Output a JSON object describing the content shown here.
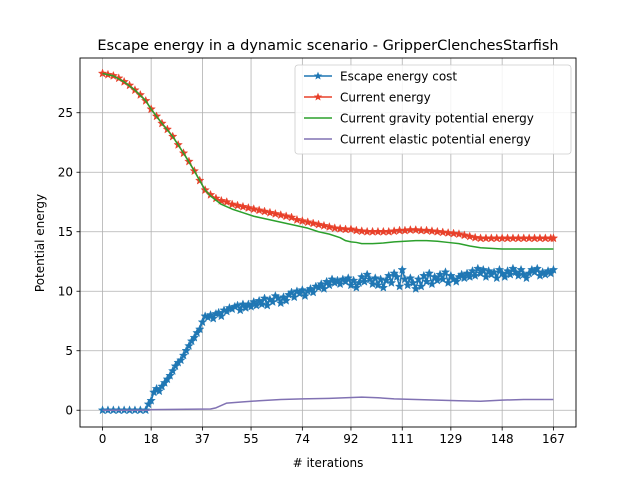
{
  "chart_data": {
    "type": "line",
    "title": "Escape energy in a dynamic scenario - GripperClenchesStarfish",
    "xlabel": "# iterations",
    "ylabel": "Potential energy",
    "xlim": [
      -8.35,
      175.35
    ],
    "ylim": [
      -1.41,
      29.6
    ],
    "xticks": [
      0,
      18,
      37,
      55,
      74,
      92,
      111,
      129,
      148,
      167
    ],
    "yticks": [
      0,
      5,
      10,
      15,
      20,
      25
    ],
    "grid": true,
    "legend_position": "top-right",
    "series": [
      {
        "name": "Escape energy cost",
        "color": "#1f77b4",
        "marker": "star",
        "points": [
          [
            0,
            0
          ],
          [
            2,
            0
          ],
          [
            4,
            0
          ],
          [
            6,
            0
          ],
          [
            8,
            0
          ],
          [
            10,
            0
          ],
          [
            12,
            0
          ],
          [
            14,
            0
          ],
          [
            16,
            0
          ],
          [
            17,
            0.5
          ],
          [
            18,
            0.8
          ],
          [
            19,
            1.5
          ],
          [
            20,
            1.8
          ],
          [
            21,
            1.6
          ],
          [
            22,
            2.0
          ],
          [
            23,
            2.3
          ],
          [
            24,
            2.6
          ],
          [
            25,
            2.9
          ],
          [
            26,
            3.3
          ],
          [
            27,
            3.7
          ],
          [
            28,
            4.0
          ],
          [
            29,
            4.2
          ],
          [
            30,
            4.6
          ],
          [
            31,
            5.0
          ],
          [
            32,
            5.4
          ],
          [
            33,
            5.8
          ],
          [
            34,
            6.1
          ],
          [
            35,
            6.5
          ],
          [
            36,
            6.8
          ],
          [
            37,
            7.4
          ],
          [
            38,
            7.9
          ],
          [
            39,
            7.8
          ],
          [
            40,
            8.0
          ],
          [
            41,
            7.7
          ],
          [
            42,
            8.1
          ],
          [
            43,
            8.2
          ],
          [
            44,
            7.9
          ],
          [
            45,
            8.4
          ],
          [
            46,
            8.3
          ],
          [
            47,
            8.6
          ],
          [
            48,
            8.5
          ],
          [
            49,
            8.7
          ],
          [
            50,
            8.8
          ],
          [
            51,
            8.4
          ],
          [
            52,
            8.9
          ],
          [
            53,
            8.6
          ],
          [
            54,
            8.9
          ],
          [
            55,
            8.7
          ],
          [
            56,
            9.1
          ],
          [
            57,
            8.8
          ],
          [
            58,
            9.2
          ],
          [
            59,
            8.9
          ],
          [
            60,
            9.4
          ],
          [
            61,
            8.8
          ],
          [
            62,
            9.3
          ],
          [
            63,
            9.1
          ],
          [
            64,
            9.6
          ],
          [
            65,
            9.4
          ],
          [
            66,
            9.0
          ],
          [
            67,
            9.5
          ],
          [
            68,
            9.2
          ],
          [
            69,
            9.7
          ],
          [
            70,
            9.9
          ],
          [
            71,
            9.5
          ],
          [
            72,
            10.0
          ],
          [
            73,
            9.8
          ],
          [
            74,
            10.1
          ],
          [
            75,
            9.6
          ],
          [
            76,
            10.0
          ],
          [
            77,
            10.2
          ],
          [
            78,
            9.9
          ],
          [
            79,
            10.4
          ],
          [
            80,
            10.3
          ],
          [
            81,
            10.6
          ],
          [
            82,
            10.2
          ],
          [
            83,
            10.8
          ],
          [
            84,
            10.5
          ],
          [
            85,
            11.0
          ],
          [
            86,
            10.7
          ],
          [
            87,
            10.9
          ],
          [
            88,
            10.6
          ],
          [
            89,
            11.0
          ],
          [
            90,
            10.8
          ],
          [
            91,
            11.1
          ],
          [
            92,
            10.5
          ],
          [
            93,
            10.9
          ],
          [
            94,
            10.3
          ],
          [
            95,
            10.7
          ],
          [
            96,
            11.2
          ],
          [
            97,
            10.8
          ],
          [
            98,
            11.4
          ],
          [
            99,
            11.0
          ],
          [
            100,
            10.6
          ],
          [
            101,
            11.1
          ],
          [
            102,
            10.5
          ],
          [
            103,
            11.0
          ],
          [
            104,
            10.3
          ],
          [
            105,
            10.9
          ],
          [
            106,
            11.3
          ],
          [
            107,
            10.7
          ],
          [
            108,
            11.5
          ],
          [
            109,
            11.2
          ],
          [
            110,
            10.4
          ],
          [
            111,
            11.8
          ],
          [
            112,
            11.0
          ],
          [
            113,
            10.5
          ],
          [
            114,
            11.1
          ],
          [
            115,
            10.7
          ],
          [
            116,
            10.2
          ],
          [
            117,
            11.0
          ],
          [
            118,
            10.4
          ],
          [
            119,
            11.3
          ],
          [
            120,
            10.8
          ],
          [
            121,
            11.5
          ],
          [
            122,
            10.6
          ],
          [
            123,
            11.2
          ],
          [
            124,
            10.9
          ],
          [
            125,
            11.4
          ],
          [
            126,
            11.0
          ],
          [
            127,
            11.6
          ],
          [
            128,
            10.7
          ],
          [
            129,
            11.3
          ],
          [
            130,
            11.0
          ],
          [
            131,
            10.8
          ],
          [
            132,
            11.2
          ],
          [
            133,
            11.4
          ],
          [
            134,
            11.1
          ],
          [
            135,
            11.5
          ],
          [
            136,
            11.2
          ],
          [
            137,
            11.7
          ],
          [
            138,
            11.3
          ],
          [
            139,
            11.9
          ],
          [
            140,
            11.5
          ],
          [
            141,
            11.8
          ],
          [
            142,
            11.2
          ],
          [
            143,
            11.7
          ],
          [
            144,
            11.4
          ],
          [
            145,
            11.6
          ],
          [
            146,
            11.1
          ],
          [
            147,
            11.8
          ],
          [
            148,
            11.5
          ],
          [
            149,
            11.2
          ],
          [
            150,
            11.7
          ],
          [
            151,
            11.4
          ],
          [
            152,
            11.9
          ],
          [
            153,
            11.6
          ],
          [
            154,
            11.3
          ],
          [
            155,
            11.8
          ],
          [
            156,
            11.4
          ],
          [
            157,
            11.1
          ],
          [
            158,
            11.5
          ],
          [
            159,
            11.8
          ],
          [
            160,
            11.6
          ],
          [
            161,
            11.9
          ],
          [
            162,
            11.3
          ],
          [
            163,
            11.6
          ],
          [
            164,
            11.4
          ],
          [
            165,
            11.7
          ],
          [
            166,
            11.5
          ],
          [
            167,
            11.8
          ]
        ]
      },
      {
        "name": "Current energy",
        "color": "#e8402a",
        "marker": "star",
        "points": [
          [
            0,
            28.3
          ],
          [
            2,
            28.2
          ],
          [
            4,
            28.1
          ],
          [
            6,
            27.9
          ],
          [
            8,
            27.6
          ],
          [
            10,
            27.3
          ],
          [
            12,
            26.9
          ],
          [
            14,
            26.5
          ],
          [
            16,
            26.0
          ],
          [
            18,
            25.3
          ],
          [
            20,
            24.7
          ],
          [
            22,
            24.1
          ],
          [
            24,
            23.6
          ],
          [
            26,
            23.0
          ],
          [
            28,
            22.3
          ],
          [
            30,
            21.6
          ],
          [
            32,
            20.9
          ],
          [
            34,
            20.1
          ],
          [
            36,
            19.3
          ],
          [
            38,
            18.5
          ],
          [
            40,
            18.1
          ],
          [
            42,
            17.8
          ],
          [
            44,
            17.6
          ],
          [
            46,
            17.5
          ],
          [
            48,
            17.3
          ],
          [
            50,
            17.2
          ],
          [
            52,
            17.1
          ],
          [
            54,
            17.0
          ],
          [
            56,
            16.9
          ],
          [
            58,
            16.8
          ],
          [
            60,
            16.7
          ],
          [
            62,
            16.6
          ],
          [
            64,
            16.5
          ],
          [
            66,
            16.4
          ],
          [
            68,
            16.3
          ],
          [
            70,
            16.2
          ],
          [
            72,
            16.0
          ],
          [
            74,
            15.9
          ],
          [
            76,
            15.8
          ],
          [
            78,
            15.7
          ],
          [
            80,
            15.6
          ],
          [
            82,
            15.5
          ],
          [
            84,
            15.4
          ],
          [
            86,
            15.3
          ],
          [
            88,
            15.25
          ],
          [
            90,
            15.2
          ],
          [
            92,
            15.2
          ],
          [
            94,
            15.1
          ],
          [
            96,
            15.05
          ],
          [
            98,
            15.0
          ],
          [
            100,
            15.0
          ],
          [
            102,
            15.0
          ],
          [
            104,
            15.0
          ],
          [
            106,
            15.0
          ],
          [
            108,
            15.05
          ],
          [
            110,
            15.1
          ],
          [
            112,
            15.1
          ],
          [
            114,
            15.15
          ],
          [
            116,
            15.15
          ],
          [
            118,
            15.1
          ],
          [
            120,
            15.1
          ],
          [
            122,
            15.05
          ],
          [
            124,
            15.0
          ],
          [
            126,
            14.95
          ],
          [
            128,
            14.9
          ],
          [
            130,
            14.85
          ],
          [
            132,
            14.8
          ],
          [
            134,
            14.7
          ],
          [
            136,
            14.6
          ],
          [
            138,
            14.5
          ],
          [
            140,
            14.45
          ],
          [
            142,
            14.45
          ],
          [
            144,
            14.45
          ],
          [
            146,
            14.45
          ],
          [
            148,
            14.45
          ],
          [
            150,
            14.45
          ],
          [
            152,
            14.45
          ],
          [
            154,
            14.45
          ],
          [
            156,
            14.45
          ],
          [
            158,
            14.45
          ],
          [
            160,
            14.45
          ],
          [
            162,
            14.45
          ],
          [
            164,
            14.45
          ],
          [
            166,
            14.45
          ],
          [
            167,
            14.45
          ]
        ]
      },
      {
        "name": "Current gravity potential energy",
        "color": "#2ca02c",
        "marker": "none",
        "points": [
          [
            0,
            28.3
          ],
          [
            4,
            28.1
          ],
          [
            8,
            27.6
          ],
          [
            12,
            26.9
          ],
          [
            16,
            26.0
          ],
          [
            18,
            25.3
          ],
          [
            22,
            24.1
          ],
          [
            26,
            23.0
          ],
          [
            30,
            21.6
          ],
          [
            34,
            20.1
          ],
          [
            38,
            18.5
          ],
          [
            40,
            18.0
          ],
          [
            44,
            17.3
          ],
          [
            48,
            16.9
          ],
          [
            52,
            16.6
          ],
          [
            56,
            16.3
          ],
          [
            60,
            16.1
          ],
          [
            64,
            15.9
          ],
          [
            68,
            15.7
          ],
          [
            72,
            15.5
          ],
          [
            76,
            15.3
          ],
          [
            80,
            15.0
          ],
          [
            84,
            14.8
          ],
          [
            88,
            14.5
          ],
          [
            90,
            14.25
          ],
          [
            92,
            14.15
          ],
          [
            94,
            14.1
          ],
          [
            96,
            14.0
          ],
          [
            100,
            14.0
          ],
          [
            104,
            14.05
          ],
          [
            108,
            14.15
          ],
          [
            112,
            14.2
          ],
          [
            116,
            14.25
          ],
          [
            120,
            14.25
          ],
          [
            124,
            14.2
          ],
          [
            128,
            14.1
          ],
          [
            132,
            14.0
          ],
          [
            136,
            13.8
          ],
          [
            140,
            13.65
          ],
          [
            144,
            13.6
          ],
          [
            148,
            13.55
          ],
          [
            152,
            13.55
          ],
          [
            156,
            13.55
          ],
          [
            160,
            13.55
          ],
          [
            164,
            13.55
          ],
          [
            167,
            13.55
          ]
        ]
      },
      {
        "name": "Current elastic potential energy",
        "color": "#8172b3",
        "marker": "none",
        "points": [
          [
            0,
            0
          ],
          [
            17,
            0
          ],
          [
            18,
            0.05
          ],
          [
            40,
            0.1
          ],
          [
            42,
            0.2
          ],
          [
            46,
            0.6
          ],
          [
            52,
            0.7
          ],
          [
            58,
            0.8
          ],
          [
            66,
            0.9
          ],
          [
            74,
            0.95
          ],
          [
            84,
            1.0
          ],
          [
            90,
            1.05
          ],
          [
            96,
            1.1
          ],
          [
            102,
            1.05
          ],
          [
            108,
            0.95
          ],
          [
            116,
            0.9
          ],
          [
            124,
            0.85
          ],
          [
            132,
            0.8
          ],
          [
            140,
            0.75
          ],
          [
            148,
            0.85
          ],
          [
            156,
            0.9
          ],
          [
            167,
            0.9
          ]
        ]
      }
    ]
  }
}
